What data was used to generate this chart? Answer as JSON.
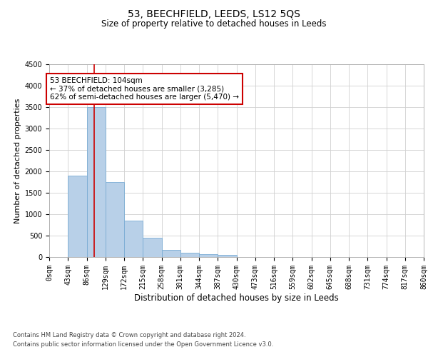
{
  "title": "53, BEECHFIELD, LEEDS, LS12 5QS",
  "subtitle": "Size of property relative to detached houses in Leeds",
  "xlabel": "Distribution of detached houses by size in Leeds",
  "ylabel": "Number of detached properties",
  "bin_labels": [
    "0sqm",
    "43sqm",
    "86sqm",
    "129sqm",
    "172sqm",
    "215sqm",
    "258sqm",
    "301sqm",
    "344sqm",
    "387sqm",
    "430sqm",
    "473sqm",
    "516sqm",
    "559sqm",
    "602sqm",
    "645sqm",
    "688sqm",
    "731sqm",
    "774sqm",
    "817sqm",
    "860sqm"
  ],
  "bin_edges": [
    0,
    43,
    86,
    129,
    172,
    215,
    258,
    301,
    344,
    387,
    430,
    473,
    516,
    559,
    602,
    645,
    688,
    731,
    774,
    817,
    860
  ],
  "bar_heights": [
    5,
    1900,
    3500,
    1750,
    850,
    450,
    165,
    100,
    70,
    55,
    0,
    0,
    0,
    0,
    0,
    0,
    0,
    0,
    0,
    0
  ],
  "bar_color": "#b8d0e8",
  "bar_edge_color": "#7aacd4",
  "property_size": 104,
  "annotation_text": "53 BEECHFIELD: 104sqm\n← 37% of detached houses are smaller (3,285)\n62% of semi-detached houses are larger (5,470) →",
  "annotation_box_color": "#ffffff",
  "annotation_box_edge": "#cc0000",
  "vline_color": "#cc0000",
  "ylim": [
    0,
    4500
  ],
  "yticks": [
    0,
    500,
    1000,
    1500,
    2000,
    2500,
    3000,
    3500,
    4000,
    4500
  ],
  "footer_line1": "Contains HM Land Registry data © Crown copyright and database right 2024.",
  "footer_line2": "Contains public sector information licensed under the Open Government Licence v3.0.",
  "bg_color": "#ffffff",
  "grid_color": "#d0d0d0",
  "title_fontsize": 10,
  "subtitle_fontsize": 8.5,
  "ylabel_fontsize": 8,
  "xlabel_fontsize": 8.5,
  "annotation_fontsize": 7.5,
  "tick_fontsize": 7
}
